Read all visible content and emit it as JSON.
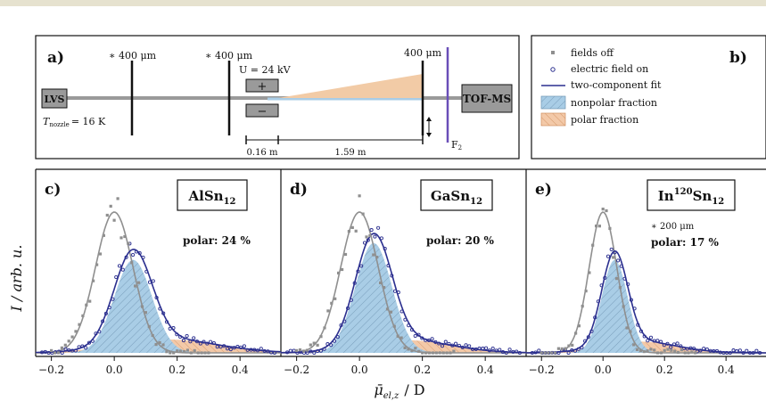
{
  "panel_a": {
    "label": "a)",
    "apertures": [
      "400 μm",
      "400 μm",
      "400 μm"
    ],
    "lvs": "LVS",
    "tofms": "TOF-MS",
    "nozzle_sym": "T",
    "nozzle_sub": "nozzle",
    "nozzle_val": "= 16 K",
    "voltage": "U = 24 kV",
    "plus": "+",
    "minus": "−",
    "dist1": "0.16 m",
    "dist2": "1.59 m",
    "f2_sym": "F",
    "f2_sub": "2"
  },
  "panel_b": {
    "label": "b)",
    "legend": [
      {
        "text": "fields off",
        "color": "#8f8f8f"
      },
      {
        "text": "electric field on",
        "color": "#2b2f8f"
      },
      {
        "text": "two-component fit",
        "color": "#2b2f8f"
      },
      {
        "text": "nonpolar fraction",
        "color": "#a9cde6"
      },
      {
        "text": "polar fraction",
        "color": "#f3c9a8"
      }
    ]
  },
  "panels": [
    {
      "label": "c)",
      "title": "AlSn",
      "title_sub": "12",
      "polar_text": "polar: 24 %",
      "aperture": ""
    },
    {
      "label": "d)",
      "title": "GaSn",
      "title_sub": "12",
      "polar_text": "polar: 20 %",
      "aperture": ""
    },
    {
      "label": "e)",
      "title_pre": "In",
      "title_sup": "120",
      "title": "Sn",
      "title_sub": "12",
      "polar_text": "polar: 17 %",
      "aperture": "200 μm"
    }
  ],
  "axes": {
    "ylabel": "I  /  arb. u.",
    "xlabel_sym": "μ̄",
    "xlabel_sub": "el,z",
    "xlabel_unit": "/  D"
  },
  "colors": {
    "fields_off": "#8f8f8f",
    "field_on": "#2b2f8f",
    "nonpolar": "#a9cde6",
    "polar": "#f3c9a8",
    "deflector_cone": "#f2cba6",
    "beam": "#9a9a9a",
    "f2_line": "#6a4fb8"
  },
  "chart_data": [
    {
      "type": "scatter",
      "title": "AlSn12",
      "xlim": [
        -0.25,
        0.53
      ],
      "xticks": [
        -0.2,
        0.0,
        0.2,
        0.4
      ],
      "xtick_labels": [
        "−0.2",
        "0.0",
        "0.2",
        "0.4"
      ],
      "polar_fraction": 0.24,
      "series": [
        {
          "name": "fields off",
          "model": "gauss",
          "center": 0.0,
          "width": 0.06,
          "amplitude": 1.0
        },
        {
          "name": "electric field on",
          "model": "sum"
        },
        {
          "name": "two-component fit",
          "model": "sum"
        },
        {
          "name": "nonpolar fraction",
          "model": "gauss",
          "center": 0.06,
          "width": 0.06,
          "amplitude": 0.66
        },
        {
          "name": "polar fraction",
          "model": "bump",
          "center": 0.17,
          "width": 0.16,
          "amplitude": 0.095
        }
      ]
    },
    {
      "type": "scatter",
      "title": "GaSn12",
      "xlim": [
        -0.25,
        0.53
      ],
      "xticks": [
        -0.2,
        0.0,
        0.2,
        0.4
      ],
      "xtick_labels": [
        "−0.2",
        "0.0",
        "0.2",
        "0.4"
      ],
      "polar_fraction": 0.2,
      "series": [
        {
          "name": "fields off",
          "model": "gauss",
          "center": 0.0,
          "width": 0.06,
          "amplitude": 1.0
        },
        {
          "name": "electric field on",
          "model": "sum"
        },
        {
          "name": "two-component fit",
          "model": "sum"
        },
        {
          "name": "nonpolar fraction",
          "model": "gauss",
          "center": 0.045,
          "width": 0.058,
          "amplitude": 0.78
        },
        {
          "name": "polar fraction",
          "model": "bump",
          "center": 0.15,
          "width": 0.14,
          "amplitude": 0.09
        }
      ]
    },
    {
      "type": "scatter",
      "title": "In120Sn12",
      "xlim": [
        -0.25,
        0.53
      ],
      "xticks": [
        -0.2,
        0.0,
        0.2,
        0.4
      ],
      "xtick_labels": [
        "−0.2",
        "0.0",
        "0.2",
        "0.4"
      ],
      "polar_fraction": 0.17,
      "series": [
        {
          "name": "fields off",
          "model": "gauss",
          "center": 0.0,
          "width": 0.045,
          "amplitude": 1.0
        },
        {
          "name": "electric field on",
          "model": "sum"
        },
        {
          "name": "two-component fit",
          "model": "sum"
        },
        {
          "name": "nonpolar fraction",
          "model": "gauss",
          "center": 0.038,
          "width": 0.042,
          "amplitude": 0.66
        },
        {
          "name": "polar fraction",
          "model": "bump",
          "center": 0.12,
          "width": 0.12,
          "amplitude": 0.08
        }
      ]
    }
  ]
}
